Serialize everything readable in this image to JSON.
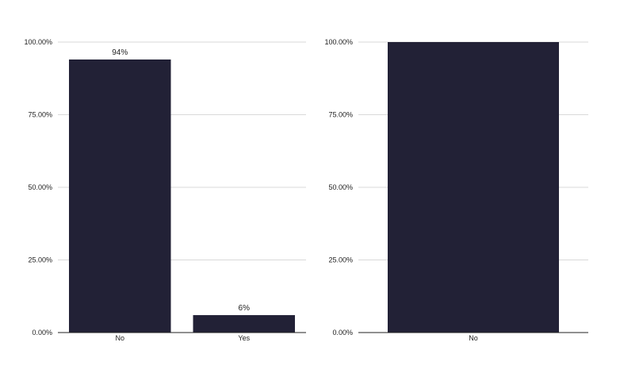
{
  "colors": {
    "bar": "#222136",
    "grid": "#d9d9d9",
    "axis": "#222222",
    "text": "#222222"
  },
  "chart_data": [
    {
      "type": "bar",
      "categories": [
        "No",
        "Yes"
      ],
      "values": [
        94,
        6
      ],
      "data_labels": [
        "94%",
        "6%"
      ],
      "yticks": [
        "0.00%",
        "25.00%",
        "50.00%",
        "75.00%",
        "100.00%"
      ],
      "ylim": [
        0,
        100
      ],
      "grid": true,
      "title": "",
      "xlabel": "",
      "ylabel": ""
    },
    {
      "type": "bar",
      "categories": [
        "No"
      ],
      "values": [
        100
      ],
      "data_labels": [
        ""
      ],
      "yticks": [
        "0.00%",
        "25.00%",
        "50.00%",
        "75.00%",
        "100.00%"
      ],
      "ylim": [
        0,
        100
      ],
      "grid": true,
      "title": "",
      "xlabel": "",
      "ylabel": ""
    }
  ]
}
